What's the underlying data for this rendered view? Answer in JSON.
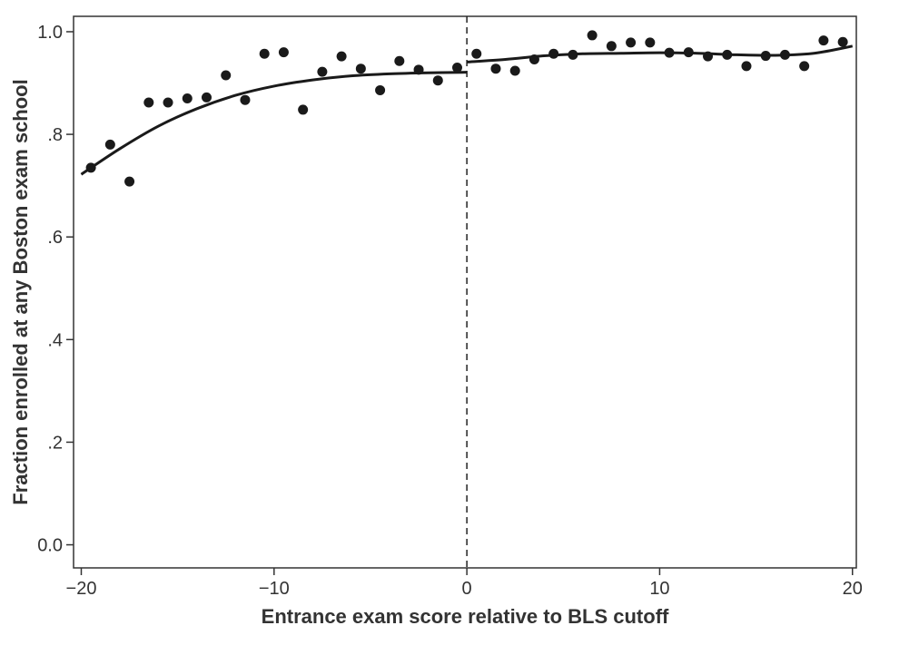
{
  "chart_data": {
    "type": "scatter",
    "title": "",
    "xlabel": "Entrance exam score relative to BLS cutoff",
    "ylabel": "Fraction enrolled at any Boston exam school",
    "xlim": [
      -20.4,
      20.2
    ],
    "ylim": [
      -0.045,
      1.03
    ],
    "x_ticks": [
      -20,
      -10,
      0,
      10,
      20
    ],
    "x_tick_labels": [
      "−20",
      "−10",
      "0",
      "10",
      "20"
    ],
    "y_ticks": [
      0,
      0.2,
      0.4,
      0.6,
      0.8,
      1.0
    ],
    "y_tick_labels": [
      "0.0",
      ".2",
      ".4",
      ".6",
      ".8",
      "1.0"
    ],
    "grid": false,
    "cutoff": 0,
    "points": [
      {
        "x": -19.5,
        "y": 0.735
      },
      {
        "x": -18.5,
        "y": 0.78
      },
      {
        "x": -17.5,
        "y": 0.708
      },
      {
        "x": -16.5,
        "y": 0.862
      },
      {
        "x": -15.5,
        "y": 0.862
      },
      {
        "x": -14.5,
        "y": 0.87
      },
      {
        "x": -13.5,
        "y": 0.872
      },
      {
        "x": -12.5,
        "y": 0.915
      },
      {
        "x": -11.5,
        "y": 0.867
      },
      {
        "x": -10.5,
        "y": 0.957
      },
      {
        "x": -9.5,
        "y": 0.96
      },
      {
        "x": -8.5,
        "y": 0.848
      },
      {
        "x": -7.5,
        "y": 0.922
      },
      {
        "x": -6.5,
        "y": 0.952
      },
      {
        "x": -5.5,
        "y": 0.928
      },
      {
        "x": -4.5,
        "y": 0.886
      },
      {
        "x": -3.5,
        "y": 0.943
      },
      {
        "x": -2.5,
        "y": 0.926
      },
      {
        "x": -1.5,
        "y": 0.905
      },
      {
        "x": -0.5,
        "y": 0.93
      },
      {
        "x": 0.5,
        "y": 0.957
      },
      {
        "x": 1.5,
        "y": 0.928
      },
      {
        "x": 2.5,
        "y": 0.924
      },
      {
        "x": 3.5,
        "y": 0.946
      },
      {
        "x": 4.5,
        "y": 0.957
      },
      {
        "x": 5.5,
        "y": 0.955
      },
      {
        "x": 6.5,
        "y": 0.993
      },
      {
        "x": 7.5,
        "y": 0.972
      },
      {
        "x": 8.5,
        "y": 0.979
      },
      {
        "x": 9.5,
        "y": 0.979
      },
      {
        "x": 10.5,
        "y": 0.959
      },
      {
        "x": 11.5,
        "y": 0.96
      },
      {
        "x": 12.5,
        "y": 0.952
      },
      {
        "x": 13.5,
        "y": 0.955
      },
      {
        "x": 14.5,
        "y": 0.933
      },
      {
        "x": 15.5,
        "y": 0.953
      },
      {
        "x": 16.5,
        "y": 0.955
      },
      {
        "x": 17.5,
        "y": 0.933
      },
      {
        "x": 18.5,
        "y": 0.983
      },
      {
        "x": 19.5,
        "y": 0.98
      }
    ],
    "fit_left": [
      {
        "x": -20,
        "y": 0.722
      },
      {
        "x": -18,
        "y": 0.772
      },
      {
        "x": -16,
        "y": 0.816
      },
      {
        "x": -14,
        "y": 0.85
      },
      {
        "x": -12,
        "y": 0.876
      },
      {
        "x": -10,
        "y": 0.894
      },
      {
        "x": -8,
        "y": 0.906
      },
      {
        "x": -6,
        "y": 0.914
      },
      {
        "x": -4,
        "y": 0.918
      },
      {
        "x": -2,
        "y": 0.92
      },
      {
        "x": 0,
        "y": 0.921
      }
    ],
    "fit_right": [
      {
        "x": 0,
        "y": 0.941
      },
      {
        "x": 2,
        "y": 0.946
      },
      {
        "x": 4,
        "y": 0.953
      },
      {
        "x": 6,
        "y": 0.957
      },
      {
        "x": 8,
        "y": 0.958
      },
      {
        "x": 10,
        "y": 0.959
      },
      {
        "x": 12,
        "y": 0.958
      },
      {
        "x": 14,
        "y": 0.955
      },
      {
        "x": 16,
        "y": 0.954
      },
      {
        "x": 18,
        "y": 0.958
      },
      {
        "x": 20,
        "y": 0.972
      }
    ],
    "colors": {
      "marks": "#1a1a1a",
      "axes": "#333333"
    }
  }
}
